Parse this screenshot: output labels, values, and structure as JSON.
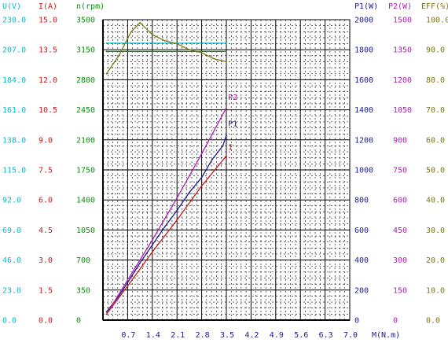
{
  "chart_data": {
    "type": "line",
    "x_axis": {
      "label": "M(N.m)",
      "ticks": [
        "0.7",
        "1.4",
        "2.1",
        "2.8",
        "3.5",
        "4.2",
        "4.9",
        "5.6",
        "6.3",
        "7.0"
      ],
      "range": [
        0,
        7.0
      ]
    },
    "left_axes": [
      {
        "key": "U",
        "label": "U(V)",
        "color": "#11b8c8",
        "ticks": [
          "0.0",
          "23.0",
          "46.0",
          "69.0",
          "92.0",
          "115.0",
          "138.0",
          "161.0",
          "184.0",
          "207.0",
          "230.0"
        ]
      },
      {
        "key": "I",
        "label": "I(A)",
        "color": "#c81c1c",
        "ticks": [
          "0.0",
          "1.5",
          "3.0",
          "4.5",
          "6.0",
          "7.5",
          "9.0",
          "10.5",
          "12.0",
          "13.5",
          "15.0"
        ]
      },
      {
        "key": "n",
        "label": "n(rpm)",
        "color": "#0f8f0f",
        "ticks": [
          "0",
          "350",
          "700",
          "1050",
          "1400",
          "1750",
          "2100",
          "2450",
          "2800",
          "3150",
          "3500"
        ]
      }
    ],
    "right_axes": [
      {
        "key": "P1",
        "label": "P1(W)",
        "color": "#1c1c8c",
        "ticks": [
          "0",
          "200",
          "400",
          "600",
          "800",
          "1000",
          "1200",
          "1400",
          "1600",
          "1800",
          "2000"
        ]
      },
      {
        "key": "P2",
        "label": "P2(W)",
        "color": "#b01eb0",
        "ticks": [
          "0",
          "150",
          "300",
          "450",
          "600",
          "750",
          "900",
          "1050",
          "1200",
          "1350",
          "1500"
        ]
      },
      {
        "key": "EFF",
        "label": "EFF(%)",
        "color": "#7a7a10",
        "ticks": [
          "0.0",
          "10.0",
          "20.0",
          "30.0",
          "40.0",
          "50.0",
          "60.0",
          "70.0",
          "80.0",
          "90.0",
          "100.0"
        ]
      }
    ],
    "series": [
      {
        "name": "P1",
        "axis": "P1",
        "color": "#1c1c8c",
        "points": [
          [
            0.1,
            55
          ],
          [
            0.45,
            160
          ],
          [
            0.7,
            250
          ],
          [
            1.05,
            380
          ],
          [
            1.4,
            500
          ],
          [
            1.75,
            620
          ],
          [
            2.1,
            730
          ],
          [
            2.45,
            850
          ],
          [
            2.8,
            950
          ],
          [
            3.1,
            1070
          ],
          [
            3.4,
            1160
          ],
          [
            3.5,
            1230
          ]
        ]
      },
      {
        "name": "P2",
        "axis": "P2",
        "color": "#b01eb0",
        "points": [
          [
            0.1,
            30
          ],
          [
            0.7,
            200
          ],
          [
            1.4,
            400
          ],
          [
            2.1,
            610
          ],
          [
            2.8,
            830
          ],
          [
            3.5,
            1060
          ]
        ]
      },
      {
        "name": "I",
        "axis": "I",
        "color": "#c81c1c",
        "points": [
          [
            0.1,
            0.3
          ],
          [
            0.7,
            1.7
          ],
          [
            1.4,
            3.4
          ],
          [
            2.1,
            5.0
          ],
          [
            2.8,
            6.7
          ],
          [
            3.5,
            8.2
          ]
        ]
      },
      {
        "axis": "n",
        "color": "#0f8f0f",
        "points": [
          [
            0.1,
            3130
          ],
          [
            3.5,
            3130
          ]
        ]
      },
      {
        "axis": "U",
        "color": "#11b8c8",
        "points": [
          [
            0.1,
            212.0
          ],
          [
            3.5,
            212.0
          ]
        ]
      },
      {
        "axis": "EFF",
        "color": "#7a7a10",
        "points": [
          [
            0.1,
            82.0
          ],
          [
            0.45,
            88.0
          ],
          [
            0.8,
            96.0
          ],
          [
            1.05,
            99.0
          ],
          [
            1.4,
            95.0
          ],
          [
            1.75,
            93.0
          ],
          [
            2.1,
            92.0
          ],
          [
            2.45,
            90.0
          ],
          [
            2.8,
            89.0
          ],
          [
            3.15,
            87.0
          ],
          [
            3.5,
            86.0
          ]
        ]
      }
    ],
    "curve_labels": [
      {
        "text": "P2",
        "x": 3.55,
        "axis": "P2",
        "y": 1100,
        "color": "#b01eb0"
      },
      {
        "text": "P1",
        "x": 3.55,
        "axis": "P1",
        "y": 1290,
        "color": "#1c1c8c"
      },
      {
        "text": "I",
        "x": 3.55,
        "axis": "I",
        "y": 8.5,
        "color": "#c81c1c"
      }
    ],
    "grid": true
  }
}
